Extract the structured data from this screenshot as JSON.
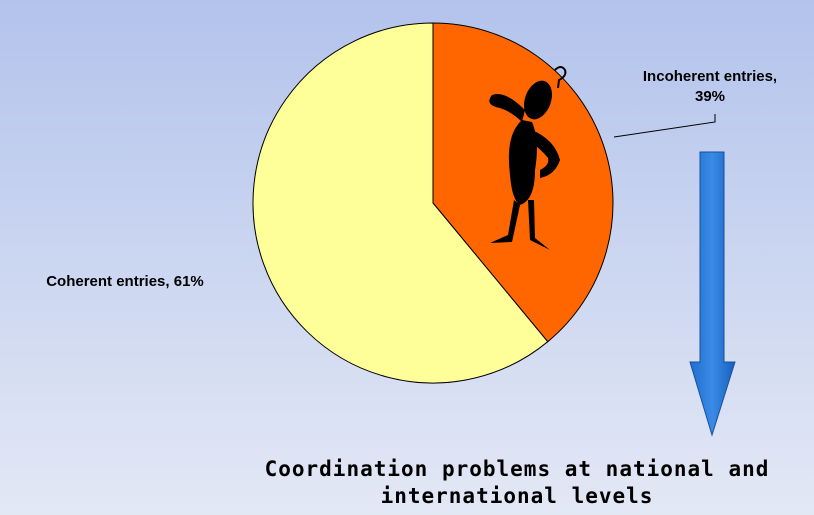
{
  "chart_data": {
    "type": "pie",
    "categories": [
      "Incoherent entries,",
      "Coherent entries,"
    ],
    "values": [
      39,
      61
    ],
    "value_labels": [
      "39%",
      "61%"
    ],
    "colors": [
      "#ff6600",
      "#ffff99"
    ],
    "annotation": [
      "Coordination problems at national and",
      "international levels"
    ]
  }
}
